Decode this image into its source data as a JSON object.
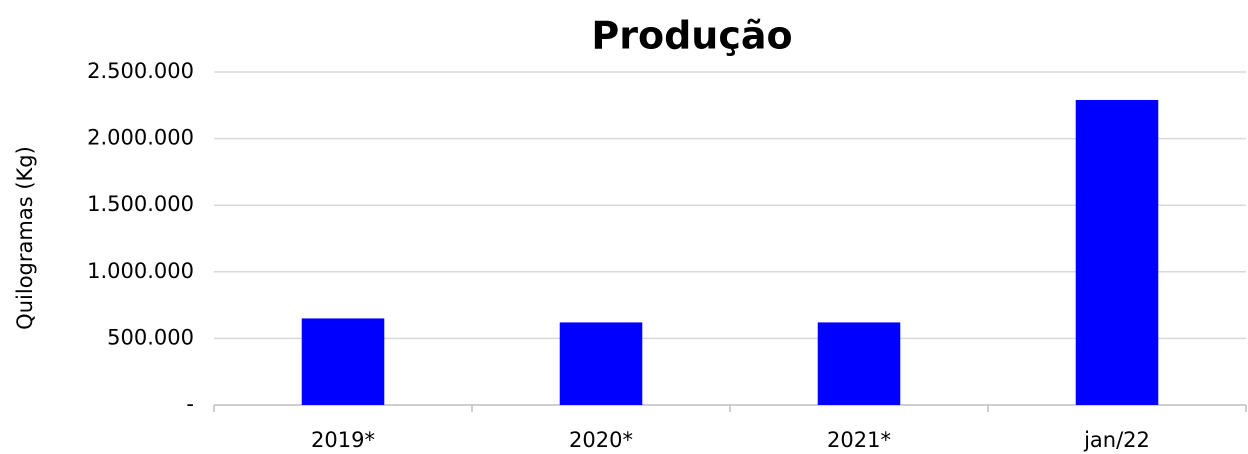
{
  "chart_data": {
    "type": "bar",
    "title": "Produção",
    "y_label": "Quilogramas (Kg)",
    "categories": [
      "2019*",
      "2020*",
      "2021*",
      "jan/22"
    ],
    "values": [
      650000,
      620000,
      620000,
      2290000
    ],
    "color": "#0000ff",
    "ylim": [
      0,
      2500000
    ],
    "yticks": [
      {
        "value": 0,
        "label": "-"
      },
      {
        "value": 500000,
        "label": "500.000"
      },
      {
        "value": 1000000,
        "label": "1.000.000"
      },
      {
        "value": 1500000,
        "label": "1.500.000"
      },
      {
        "value": 2000000,
        "label": "2.000.000"
      },
      {
        "value": 2500000,
        "label": "2.500.000"
      }
    ],
    "grid": true
  }
}
